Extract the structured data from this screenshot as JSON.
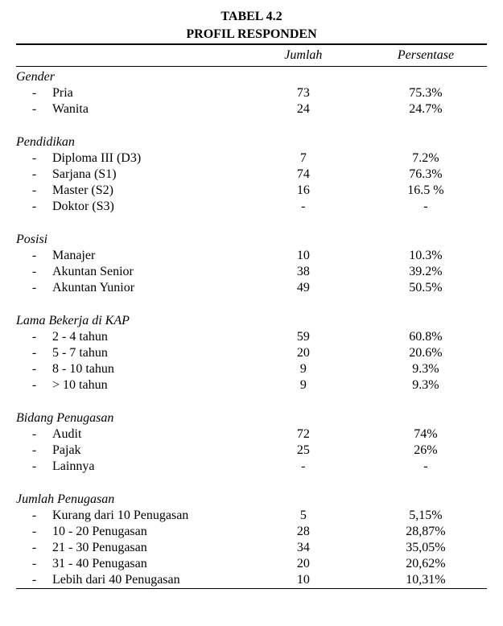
{
  "caption_line1": "TABEL 4.2",
  "caption_line2": "PROFIL RESPONDEN",
  "headers": {
    "col1": "",
    "col2": "Jumlah",
    "col3": "Persentase"
  },
  "groups": [
    {
      "title": "Gender",
      "items": [
        {
          "label": "Pria",
          "jumlah": "73",
          "persen": "75.3%"
        },
        {
          "label": "Wanita",
          "jumlah": "24",
          "persen": "24.7%"
        }
      ]
    },
    {
      "title": "Pendidikan",
      "items": [
        {
          "label": "Diploma III (D3)",
          "jumlah": "7",
          "persen": "7.2%"
        },
        {
          "label": "Sarjana (S1)",
          "jumlah": "74",
          "persen": "76.3%"
        },
        {
          "label": "Master (S2)",
          "jumlah": "16",
          "persen": "16.5 %"
        },
        {
          "label": "Doktor (S3)",
          "jumlah": "-",
          "persen": "-"
        }
      ]
    },
    {
      "title": "Posisi",
      "items": [
        {
          "label": "Manajer",
          "jumlah": "10",
          "persen": "10.3%"
        },
        {
          "label": "Akuntan Senior",
          "jumlah": "38",
          "persen": "39.2%"
        },
        {
          "label": "Akuntan Yunior",
          "jumlah": "49",
          "persen": "50.5%"
        }
      ]
    },
    {
      "title": "Lama Bekerja di KAP",
      "items": [
        {
          "label": "2  -  4  tahun",
          "jumlah": "59",
          "persen": "60.8%"
        },
        {
          "label": "5  -  7  tahun",
          "jumlah": "20",
          "persen": "20.6%"
        },
        {
          "label": "8  -  10 tahun",
          "jumlah": "9",
          "persen": "9.3%"
        },
        {
          "label": ">  10 tahun",
          "jumlah": "9",
          "persen": "9.3%"
        }
      ]
    },
    {
      "title": "Bidang Penugasan",
      "items": [
        {
          "label": "Audit",
          "jumlah": "72",
          "persen": "74%"
        },
        {
          "label": "Pajak",
          "jumlah": "25",
          "persen": "26%"
        },
        {
          "label": "Lainnya",
          "jumlah": "-",
          "persen": "-"
        }
      ]
    },
    {
      "title": "Jumlah Penugasan",
      "items": [
        {
          "label": "Kurang dari 10 Penugasan",
          "jumlah": "5",
          "persen": "5,15%"
        },
        {
          "label": "10  -  20 Penugasan",
          "jumlah": "28",
          "persen": "28,87%"
        },
        {
          "label": "21  -  30 Penugasan",
          "jumlah": "34",
          "persen": "35,05%"
        },
        {
          "label": "31  -  40 Penugasan",
          "jumlah": "20",
          "persen": "20,62%"
        },
        {
          "label": "Lebih dari 40 Penugasan",
          "jumlah": "10",
          "persen": "10,31%"
        }
      ]
    }
  ]
}
